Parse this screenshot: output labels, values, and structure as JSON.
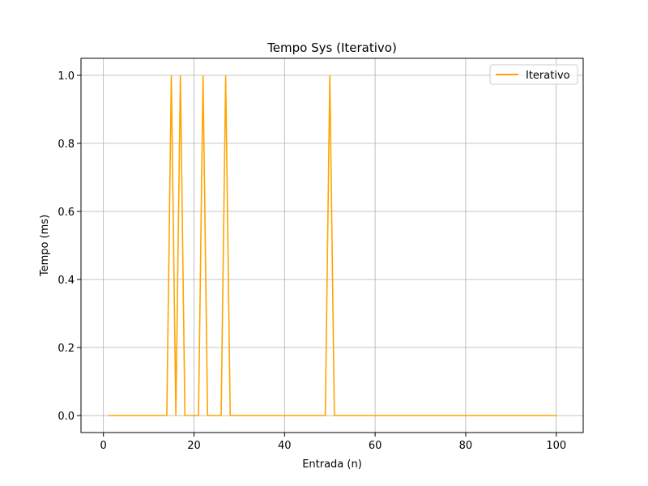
{
  "chart_data": {
    "type": "line",
    "title": "Tempo Sys (Iterativo)",
    "xlabel": "Entrada (n)",
    "ylabel": "Tempo (ms)",
    "xlim": [
      -4.95,
      105.95
    ],
    "ylim": [
      -0.05,
      1.05
    ],
    "xticks": [
      0,
      20,
      40,
      60,
      80,
      100
    ],
    "yticks": [
      0.0,
      0.2,
      0.4,
      0.6,
      0.8,
      1.0
    ],
    "xtick_labels": [
      "0",
      "20",
      "40",
      "60",
      "80",
      "100"
    ],
    "ytick_labels": [
      "0.0",
      "0.2",
      "0.4",
      "0.6",
      "0.8",
      "1.0"
    ],
    "grid": true,
    "legend_position": "top-right",
    "series": [
      {
        "name": "Iterativo",
        "color": "#ffa500",
        "x": [
          1,
          14,
          15,
          16,
          17,
          18,
          21,
          22,
          23,
          26,
          27,
          28,
          49,
          50,
          51,
          100
        ],
        "y": [
          0,
          0,
          1,
          0,
          1,
          0,
          0,
          1,
          0,
          0,
          1,
          0,
          0,
          1,
          0,
          0
        ]
      }
    ]
  }
}
